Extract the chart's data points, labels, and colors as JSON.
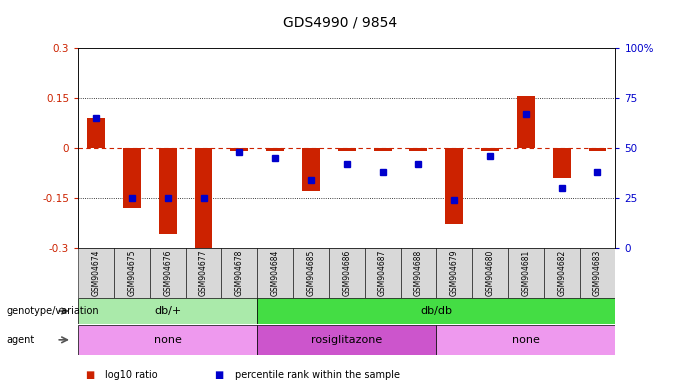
{
  "title": "GDS4990 / 9854",
  "samples": [
    "GSM904674",
    "GSM904675",
    "GSM904676",
    "GSM904677",
    "GSM904678",
    "GSM904684",
    "GSM904685",
    "GSM904686",
    "GSM904687",
    "GSM904688",
    "GSM904679",
    "GSM904680",
    "GSM904681",
    "GSM904682",
    "GSM904683"
  ],
  "log10_ratio": [
    0.09,
    -0.18,
    -0.26,
    -0.3,
    -0.01,
    -0.01,
    -0.13,
    -0.01,
    -0.01,
    -0.01,
    -0.23,
    -0.01,
    0.155,
    -0.09,
    -0.01
  ],
  "percentile": [
    65,
    25,
    25,
    25,
    48,
    45,
    34,
    42,
    38,
    42,
    24,
    46,
    67,
    30,
    38
  ],
  "ylim_left": [
    -0.3,
    0.3
  ],
  "ylim_right": [
    0,
    100
  ],
  "bar_color": "#cc2200",
  "dot_color": "#0000cc",
  "zero_line_color": "#cc2200",
  "genotype_groups": [
    {
      "label": "db/+",
      "start": 0,
      "end": 5,
      "color": "#aaeaaa"
    },
    {
      "label": "db/db",
      "start": 5,
      "end": 15,
      "color": "#44dd44"
    }
  ],
  "agent_groups": [
    {
      "label": "none",
      "start": 0,
      "end": 5,
      "color": "#ee99ee"
    },
    {
      "label": "rosiglitazone",
      "start": 5,
      "end": 10,
      "color": "#cc55cc"
    },
    {
      "label": "none",
      "start": 10,
      "end": 15,
      "color": "#ee99ee"
    }
  ],
  "legend_items": [
    {
      "color": "#cc2200",
      "label": "log10 ratio"
    },
    {
      "color": "#0000cc",
      "label": "percentile rank within the sample"
    }
  ],
  "left_yticks": [
    -0.3,
    -0.15,
    0,
    0.15,
    0.3
  ],
  "right_yticks": [
    0,
    25,
    50,
    75,
    100
  ],
  "right_yticklabels": [
    "0",
    "25",
    "50",
    "75",
    "100%"
  ]
}
